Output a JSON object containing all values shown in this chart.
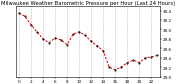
{
  "title": "Milwaukee Weather Barometric Pressure per Hour (Last 24 Hours)",
  "x_values": [
    0,
    1,
    2,
    3,
    4,
    5,
    6,
    7,
    8,
    9,
    10,
    11,
    12,
    13,
    14,
    15,
    16,
    17,
    18,
    19,
    20,
    21,
    22,
    23
  ],
  "y_values": [
    30.35,
    30.28,
    30.1,
    29.95,
    29.8,
    29.72,
    29.82,
    29.78,
    29.68,
    29.9,
    29.95,
    29.88,
    29.75,
    29.65,
    29.55,
    29.2,
    29.15,
    29.2,
    29.3,
    29.35,
    29.3,
    29.4,
    29.42,
    29.45
  ],
  "line_color": "#dd0000",
  "marker_color": "#000000",
  "grid_color": "#888888",
  "background_color": "#ffffff",
  "title_fontsize": 3.8,
  "tick_fontsize": 3.0,
  "ylim_min": 29.0,
  "ylim_max": 30.5,
  "y_ticks": [
    29.0,
    29.2,
    29.4,
    29.6,
    29.8,
    30.0,
    30.2,
    30.4
  ],
  "y_tick_labels": [
    "29.0",
    "29.2",
    "29.4",
    "29.6",
    "29.8",
    "30.0",
    "30.2",
    "30.4"
  ],
  "x_ticks": [
    0,
    2,
    4,
    6,
    8,
    10,
    12,
    14,
    16,
    18,
    20,
    22
  ],
  "x_tick_labels": [
    "0",
    "2",
    "4",
    "6",
    "8",
    "10",
    "12",
    "14",
    "16",
    "18",
    "20",
    "22"
  ],
  "marker_size": 1.0,
  "line_width": 0.7
}
